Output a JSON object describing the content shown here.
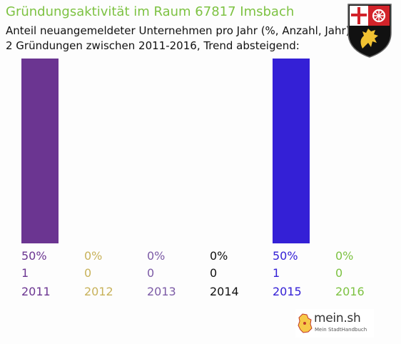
{
  "header": {
    "title": "Gründungsaktivität im Raum 67817 Imsbach",
    "subtitle_line1": "Anteil neuangemeldeter Unternehmen pro Jahr (%, Anzahl, Jahr)",
    "subtitle_line2": "2 Gründungen zwischen 2011-2016, Trend absteigend:"
  },
  "chart_data": {
    "type": "bar",
    "categories": [
      "2011",
      "2012",
      "2013",
      "2014",
      "2015",
      "2016"
    ],
    "percent_labels": [
      "50%",
      "0%",
      "0%",
      "0%",
      "50%",
      "0%"
    ],
    "count_labels": [
      "1",
      "0",
      "0",
      "0",
      "1",
      "0"
    ],
    "values": [
      50,
      0,
      0,
      0,
      50,
      0
    ],
    "counts": [
      1,
      0,
      0,
      0,
      1,
      0
    ],
    "colors": [
      "#6b3591",
      "#c8b25a",
      "#7c5ba6",
      "#111111",
      "#3420d6",
      "#7dc242"
    ],
    "ylim": [
      0,
      50
    ]
  },
  "logo": {
    "name": "mein.sh",
    "tagline": "Mein StadtHandbuch"
  },
  "emblem": {
    "icon": "rhineland-palatinate-coat-of-arms-icon"
  }
}
